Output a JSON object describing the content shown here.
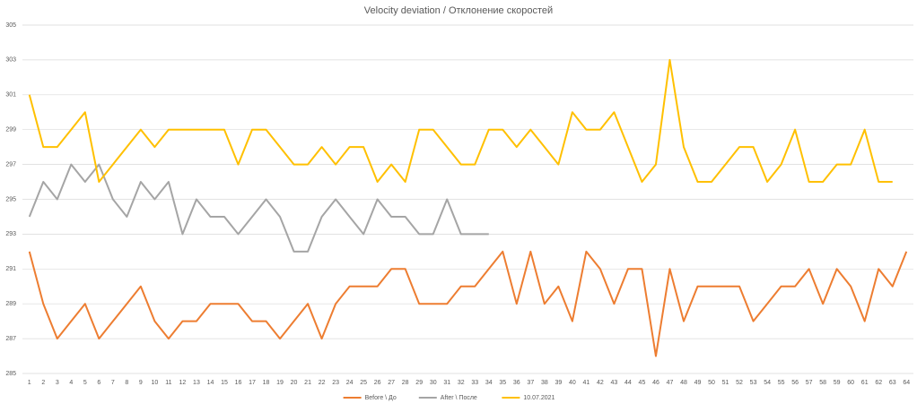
{
  "chart_data": {
    "type": "line",
    "title": "Velocity deviation / Отклонение скоростей",
    "categories": [
      1,
      2,
      3,
      4,
      5,
      6,
      7,
      8,
      9,
      10,
      11,
      12,
      13,
      14,
      15,
      16,
      17,
      18,
      19,
      20,
      21,
      22,
      23,
      24,
      25,
      26,
      27,
      28,
      29,
      30,
      31,
      32,
      33,
      34,
      35,
      36,
      37,
      38,
      39,
      40,
      41,
      42,
      43,
      44,
      45,
      46,
      47,
      48,
      49,
      50,
      51,
      52,
      53,
      54,
      55,
      56,
      57,
      58,
      59,
      60,
      61,
      62,
      63,
      64
    ],
    "series": [
      {
        "name": "Before \\ До",
        "color": "#ed7d31",
        "values": [
          292,
          289,
          287,
          288,
          289,
          287,
          288,
          289,
          290,
          288,
          287,
          288,
          288,
          289,
          289,
          289,
          288,
          288,
          287,
          288,
          289,
          287,
          289,
          290,
          290,
          290,
          291,
          291,
          289,
          289,
          289,
          290,
          290,
          291,
          292,
          289,
          292,
          289,
          290,
          288,
          292,
          291,
          289,
          291,
          291,
          286,
          291,
          288,
          290,
          290,
          290,
          290,
          288,
          289,
          290,
          290,
          291,
          289,
          291,
          290,
          288,
          291,
          290,
          292
        ]
      },
      {
        "name": "After \\ После",
        "color": "#a5a5a5",
        "values": [
          294,
          296,
          295,
          297,
          296,
          297,
          295,
          294,
          296,
          295,
          296,
          293,
          295,
          294,
          294,
          293,
          294,
          295,
          294,
          292,
          292,
          294,
          295,
          294,
          293,
          295,
          294,
          294,
          293,
          293,
          295,
          293,
          293,
          293,
          null,
          null,
          null,
          null,
          null,
          null,
          null,
          null,
          null,
          null,
          null,
          null,
          null,
          null,
          null,
          null,
          null,
          null,
          null,
          null,
          null,
          null,
          null,
          null,
          null,
          null,
          null,
          null,
          null,
          null
        ]
      },
      {
        "name": "10.07.2021",
        "color": "#ffc000",
        "values": [
          301,
          298,
          298,
          299,
          300,
          296,
          297,
          298,
          299,
          298,
          299,
          299,
          299,
          299,
          299,
          297,
          299,
          299,
          298,
          297,
          297,
          298,
          297,
          298,
          298,
          296,
          297,
          296,
          299,
          299,
          298,
          297,
          297,
          299,
          299,
          298,
          299,
          298,
          297,
          300,
          299,
          299,
          300,
          298,
          296,
          297,
          303,
          298,
          296,
          296,
          297,
          298,
          298,
          296,
          297,
          299,
          296,
          296,
          297,
          297,
          299,
          296,
          296,
          null
        ]
      }
    ],
    "ylim": [
      285,
      305
    ],
    "yticks": [
      285,
      287,
      289,
      291,
      293,
      295,
      297,
      299,
      301,
      303,
      305
    ],
    "grid": true,
    "legend": "bottom"
  }
}
